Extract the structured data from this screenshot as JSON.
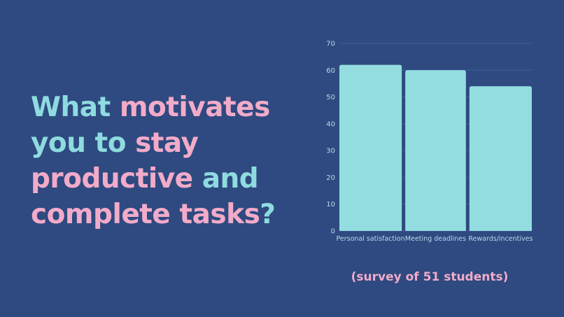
{
  "headline": {
    "segments": [
      {
        "text": "What ",
        "tone": "teal"
      },
      {
        "text": "motivates",
        "tone": "pink"
      },
      {
        "text": "you to ",
        "tone": "teal"
      },
      {
        "text": "stay",
        "tone": "pink"
      },
      {
        "text": "productive",
        "tone": "pink"
      },
      {
        "text": " and",
        "tone": "teal"
      },
      {
        "text": "complete tasks",
        "tone": "pink"
      },
      {
        "text": "?",
        "tone": "teal"
      }
    ]
  },
  "caption": "(survey of 51 students)",
  "colors": {
    "background": "#2e4a80",
    "teal": "#8fdbe0",
    "pink": "#f2abc9",
    "bar": "#93dde1",
    "grid": "#3f5f97",
    "tick": "#b9d9ea"
  },
  "chart_data": {
    "type": "bar",
    "title": "",
    "xlabel": "",
    "ylabel": "",
    "categories": [
      "Personal satisfaction",
      "Meeting deadlines",
      "Rewards/incentives"
    ],
    "values": [
      62,
      60,
      54
    ],
    "ylim": [
      0,
      70
    ],
    "yticks": [
      0,
      10,
      20,
      30,
      40,
      50,
      60,
      70
    ],
    "grid": true,
    "legend": "none"
  }
}
